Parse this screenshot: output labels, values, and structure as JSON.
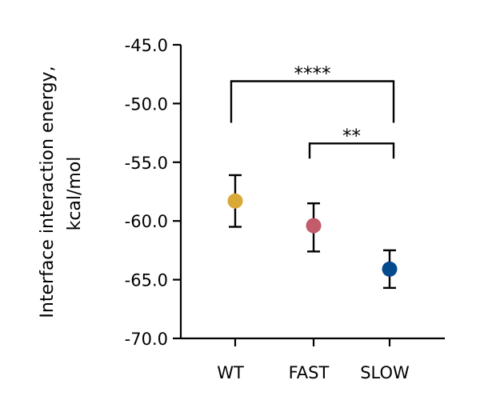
{
  "chart_data": {
    "type": "scatter",
    "title": "",
    "xlabel": "",
    "ylabel_lines": [
      "Interface interaction energy,",
      "kcal/mol"
    ],
    "ylim": [
      -70.0,
      -45.0
    ],
    "yticks": [
      -45.0,
      -50.0,
      -55.0,
      -60.0,
      -65.0,
      -70.0
    ],
    "ytick_labels": [
      "-45.0",
      "-50.0",
      "-55.0",
      "-60.0",
      "-65.0",
      "-70.0"
    ],
    "grid": false,
    "categories": [
      "WT",
      "FAST",
      "SLOW"
    ],
    "points": [
      {
        "category": "WT",
        "mean": -58.3,
        "err_low": -60.5,
        "err_high": -56.1,
        "color": "#D9A836"
      },
      {
        "category": "FAST",
        "mean": -60.4,
        "err_low": -62.6,
        "err_high": -58.5,
        "color": "#C25B6A"
      },
      {
        "category": "SLOW",
        "mean": -64.1,
        "err_low": -65.7,
        "err_high": -62.5,
        "color": "#044A8C"
      }
    ],
    "significance": [
      {
        "from": "WT",
        "to": "SLOW",
        "label": "****",
        "y": -48.1
      },
      {
        "from": "FAST",
        "to": "SLOW",
        "label": "**",
        "y": -53.4
      }
    ]
  }
}
